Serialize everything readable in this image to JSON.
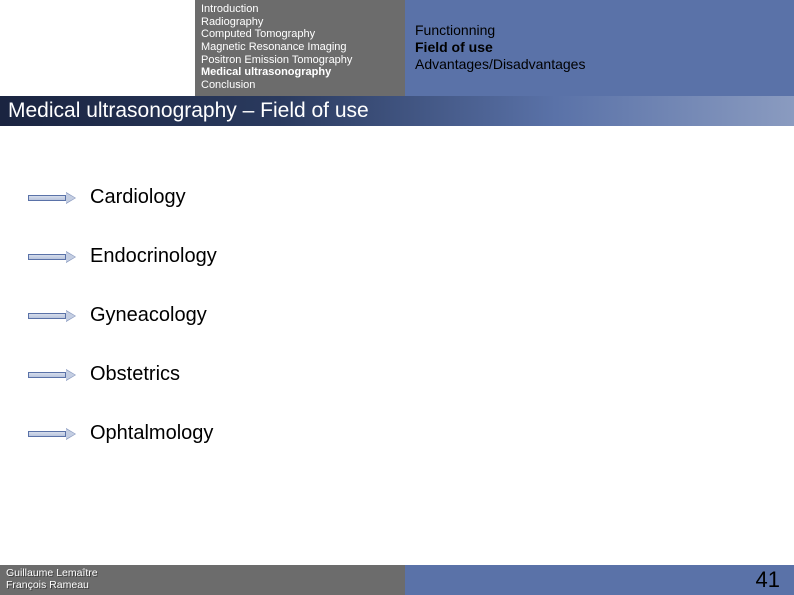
{
  "outline": {
    "items": [
      {
        "label": "Introduction",
        "bold": false
      },
      {
        "label": "Radiography",
        "bold": false
      },
      {
        "label": "Computed Tomography",
        "bold": false
      },
      {
        "label": "Magnetic Resonance Imaging",
        "bold": false
      },
      {
        "label": "Positron Emission Tomography",
        "bold": false
      },
      {
        "label": "Medical ultrasonography",
        "bold": true
      },
      {
        "label": "Conclusion",
        "bold": false
      }
    ]
  },
  "subnav": {
    "items": [
      {
        "label": "Functionning",
        "bold": false
      },
      {
        "label": "Field of use",
        "bold": true
      },
      {
        "label": "Advantages/Disadvantages",
        "bold": false
      }
    ]
  },
  "title": "Medical ultrasonography – Field of use",
  "bullets": [
    "Cardiology",
    "Endocrinology",
    "Gyneacology",
    "Obstetrics",
    "Ophtalmology"
  ],
  "authors": {
    "line1": "Guillaume Lemaître",
    "line2": "François Rameau"
  },
  "page_number": "41",
  "colors": {
    "outline_bg": "#6c6c6c",
    "subnav_bg": "#5a72a8",
    "arrow_border": "#5a72a8"
  }
}
